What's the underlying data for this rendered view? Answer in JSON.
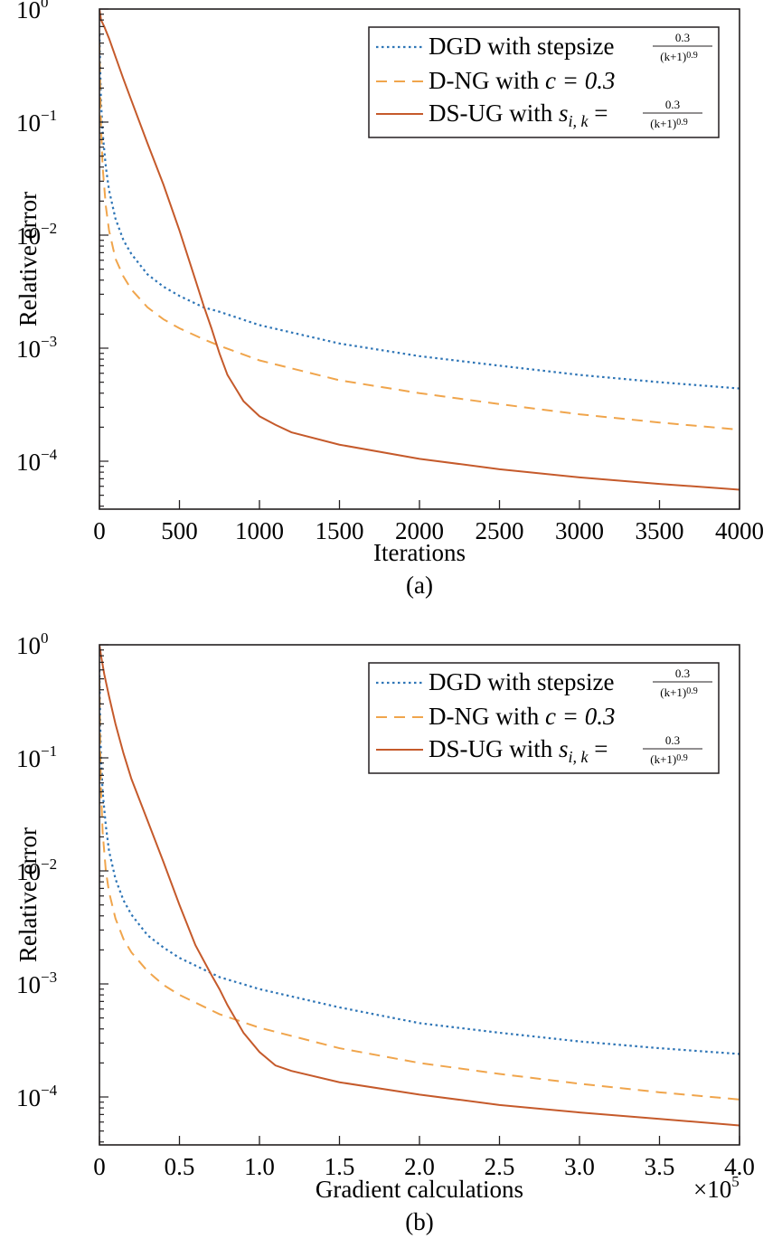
{
  "chart_data": [
    {
      "type": "line",
      "yscale": "log",
      "xlabel": "Iterations",
      "ylabel": "Relative error",
      "sublabel": "(a)",
      "xlim": [
        0,
        4000
      ],
      "ylim": [
        4e-05,
        1
      ],
      "x_ticks": [
        0,
        500,
        1000,
        1500,
        2000,
        2500,
        3000,
        3500,
        4000
      ],
      "x_tick_labels": [
        "0",
        "500",
        "1000",
        "1500",
        "2000",
        "2500",
        "3000",
        "3500",
        "4000"
      ],
      "x_multiplier": "",
      "y_ticks": [
        1,
        0.1,
        0.01,
        0.001,
        0.0001
      ],
      "y_tick_labels": [
        {
          "base": "10",
          "exp": "0"
        },
        {
          "base": "10",
          "exp": "−1"
        },
        {
          "base": "10",
          "exp": "−2"
        },
        {
          "base": "10",
          "exp": "−3"
        },
        {
          "base": "10",
          "exp": "−4"
        }
      ],
      "legend_position": "top-right",
      "grid": false,
      "series": [
        {
          "key": "dgd",
          "legend_text": "DGD with stepsize",
          "legend_frac": {
            "num": "0.3",
            "den": "(k+1)",
            "exp": "0.9"
          },
          "color": "#2e75b6",
          "style": "dotted",
          "x": [
            0,
            5,
            10,
            20,
            40,
            60,
            100,
            150,
            200,
            300,
            400,
            500,
            650,
            750,
            1000,
            1500,
            2000,
            2500,
            3000,
            3500,
            4000
          ],
          "y": [
            0.6,
            0.3,
            0.15,
            0.08,
            0.04,
            0.025,
            0.014,
            0.009,
            0.0068,
            0.0045,
            0.0035,
            0.0029,
            0.0023,
            0.0021,
            0.0016,
            0.0011,
            0.00085,
            0.0007,
            0.00058,
            0.0005,
            0.00044
          ]
        },
        {
          "key": "dng",
          "legend_text": "D-NG with",
          "legend_param": "c = 0.3",
          "color": "#f0a54c",
          "style": "dashed",
          "x": [
            0,
            5,
            10,
            20,
            40,
            60,
            100,
            150,
            200,
            300,
            400,
            500,
            650,
            750,
            1000,
            1500,
            2000,
            2500,
            3000,
            3500,
            4000
          ],
          "y": [
            0.5,
            0.2,
            0.09,
            0.04,
            0.018,
            0.011,
            0.0062,
            0.0043,
            0.0033,
            0.0023,
            0.0018,
            0.0015,
            0.0012,
            0.00105,
            0.00078,
            0.00052,
            0.0004,
            0.00032,
            0.00026,
            0.00022,
            0.00019
          ]
        },
        {
          "key": "dsug",
          "legend_text": "DS-UG with",
          "legend_param": "s",
          "legend_sub": "i, k",
          "legend_frac": {
            "num": "0.3",
            "den": "(k+1)",
            "exp": "0.9"
          },
          "color": "#c55a2b",
          "style": "solid",
          "x": [
            0,
            5,
            10,
            30,
            60,
            100,
            150,
            200,
            300,
            400,
            500,
            600,
            650,
            700,
            750,
            800,
            900,
            1000,
            1100,
            1200,
            1500,
            2000,
            2500,
            3000,
            3500,
            4000
          ],
          "y": [
            1.0,
            0.9,
            0.8,
            0.7,
            0.55,
            0.38,
            0.24,
            0.155,
            0.065,
            0.028,
            0.011,
            0.004,
            0.0024,
            0.0015,
            0.0009,
            0.00058,
            0.00034,
            0.00025,
            0.00021,
            0.00018,
            0.00014,
            0.000105,
            8.5e-05,
            7.2e-05,
            6.3e-05,
            5.6e-05
          ]
        }
      ]
    },
    {
      "type": "line",
      "yscale": "log",
      "xlabel": "Gradient calculations",
      "ylabel": "Relative error",
      "sublabel": "(b)",
      "xlim": [
        0,
        4.0
      ],
      "ylim": [
        4e-05,
        1
      ],
      "x_ticks": [
        0,
        0.5,
        1.0,
        1.5,
        2.0,
        2.5,
        3.0,
        3.5,
        4.0
      ],
      "x_tick_labels": [
        "0",
        "0.5",
        "1.0",
        "1.5",
        "2.0",
        "2.5",
        "3.0",
        "3.5",
        "4.0"
      ],
      "x_multiplier": {
        "base": "×10",
        "exp": "5"
      },
      "y_ticks": [
        1,
        0.1,
        0.01,
        0.001,
        0.0001
      ],
      "y_tick_labels": [
        {
          "base": "10",
          "exp": "0"
        },
        {
          "base": "10",
          "exp": "−1"
        },
        {
          "base": "10",
          "exp": "−2"
        },
        {
          "base": "10",
          "exp": "−3"
        },
        {
          "base": "10",
          "exp": "−4"
        }
      ],
      "legend_position": "top-right",
      "grid": false,
      "series": [
        {
          "key": "dgd",
          "legend_text": "DGD with stepsize",
          "legend_frac": {
            "num": "0.3",
            "den": "(k+1)",
            "exp": "0.9"
          },
          "color": "#2e75b6",
          "style": "dotted",
          "x": [
            0,
            0.005,
            0.01,
            0.02,
            0.04,
            0.06,
            0.1,
            0.15,
            0.2,
            0.3,
            0.4,
            0.5,
            0.75,
            1.0,
            1.5,
            2.0,
            2.5,
            3.0,
            3.5,
            4.0
          ],
          "y": [
            0.6,
            0.2,
            0.1,
            0.05,
            0.025,
            0.015,
            0.0085,
            0.0055,
            0.0041,
            0.0027,
            0.0021,
            0.0017,
            0.00115,
            0.0009,
            0.00062,
            0.00045,
            0.00037,
            0.00031,
            0.00027,
            0.00024
          ]
        },
        {
          "key": "dng",
          "legend_text": "D-NG with",
          "legend_param": "c = 0.3",
          "color": "#f0a54c",
          "style": "dashed",
          "x": [
            0,
            0.005,
            0.01,
            0.02,
            0.04,
            0.06,
            0.1,
            0.15,
            0.2,
            0.3,
            0.4,
            0.5,
            0.75,
            1.0,
            1.5,
            2.0,
            2.5,
            3.0,
            3.5,
            4.0
          ],
          "y": [
            0.5,
            0.12,
            0.05,
            0.022,
            0.01,
            0.0065,
            0.0038,
            0.0025,
            0.0019,
            0.0013,
            0.00098,
            0.0008,
            0.00054,
            0.00041,
            0.00027,
            0.0002,
            0.00016,
            0.000131,
            0.00011,
            9.5e-05
          ]
        },
        {
          "key": "dsug",
          "legend_text": "DS-UG with",
          "legend_param": "s",
          "legend_sub": "i, k",
          "legend_frac": {
            "num": "0.3",
            "den": "(k+1)",
            "exp": "0.9"
          },
          "color": "#c55a2b",
          "style": "solid",
          "x": [
            0,
            0.01,
            0.03,
            0.06,
            0.1,
            0.15,
            0.2,
            0.3,
            0.4,
            0.5,
            0.6,
            0.7,
            0.75,
            0.8,
            0.9,
            1.0,
            1.1,
            1.2,
            1.5,
            2.0,
            2.5,
            3.0,
            3.5,
            4.0
          ],
          "y": [
            1.0,
            0.8,
            0.55,
            0.35,
            0.2,
            0.11,
            0.065,
            0.028,
            0.012,
            0.005,
            0.0022,
            0.0012,
            0.0009,
            0.00065,
            0.00037,
            0.00025,
            0.00019,
            0.00017,
            0.000135,
            0.000105,
            8.5e-05,
            7.3e-05,
            6.4e-05,
            5.6e-05
          ]
        }
      ]
    }
  ]
}
